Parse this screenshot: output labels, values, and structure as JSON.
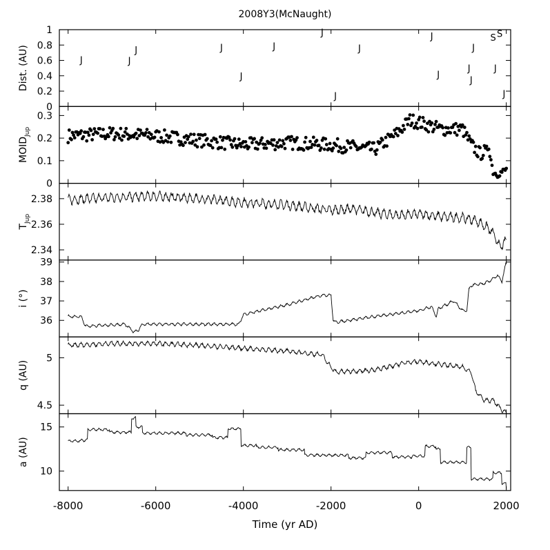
{
  "chart_data": {
    "type": "multi-panel",
    "title": "2008Y3(McNaught)",
    "xlabel": "Time (yr AD)",
    "xlim": [
      -8200,
      2100
    ],
    "xticks": [
      -8000,
      -6000,
      -4000,
      -2000,
      0,
      2000
    ],
    "xtick_labels": [
      "-8000",
      "-6000",
      "-4000",
      "-2000",
      "0",
      "2000"
    ],
    "panels": [
      {
        "key": "dist",
        "type": "annotation-scatter",
        "ylabel_main": "Dist. (AU)",
        "ylabel_sub": "",
        "ylim": [
          0,
          1
        ],
        "yticks": [
          0,
          0.2,
          0.4,
          0.6,
          0.8,
          1
        ],
        "ytick_labels": [
          "0",
          "0.2",
          "0.4",
          "0.6",
          "0.8",
          "1"
        ],
        "points": [
          {
            "x": -7700,
            "y": 0.61,
            "label": "J"
          },
          {
            "x": -6600,
            "y": 0.6,
            "label": "J"
          },
          {
            "x": -6450,
            "y": 0.74,
            "label": "J"
          },
          {
            "x": -4500,
            "y": 0.77,
            "label": "J"
          },
          {
            "x": -4050,
            "y": 0.4,
            "label": "J"
          },
          {
            "x": -3300,
            "y": 0.79,
            "label": "J"
          },
          {
            "x": -2200,
            "y": 0.97,
            "label": "J"
          },
          {
            "x": -1900,
            "y": 0.14,
            "label": "J"
          },
          {
            "x": -1350,
            "y": 0.76,
            "label": "J"
          },
          {
            "x": 300,
            "y": 0.92,
            "label": "J"
          },
          {
            "x": 450,
            "y": 0.42,
            "label": "J"
          },
          {
            "x": 1150,
            "y": 0.5,
            "label": "J"
          },
          {
            "x": 1200,
            "y": 0.35,
            "label": "J"
          },
          {
            "x": 1250,
            "y": 0.77,
            "label": "J"
          },
          {
            "x": 1700,
            "y": 0.9,
            "label": "S"
          },
          {
            "x": 1850,
            "y": 0.95,
            "label": "S"
          },
          {
            "x": 1750,
            "y": 0.5,
            "label": "J"
          },
          {
            "x": 1950,
            "y": 0.17,
            "label": "J"
          }
        ]
      },
      {
        "key": "moid",
        "type": "scatter",
        "ylabel_main": "MOID",
        "ylabel_sub": "Jup",
        "ylim": [
          0,
          0.34
        ],
        "yticks": [
          0,
          0.1,
          0.2,
          0.3
        ],
        "ytick_labels": [
          "0",
          "0.1",
          "0.2",
          "0.3"
        ],
        "trend": {
          "x": [
            -8000,
            -7000,
            -6000,
            -5000,
            -4000,
            -3000,
            -2000,
            -1500,
            -1000,
            -500,
            -200,
            0,
            500,
            1000,
            1200,
            1400,
            1500,
            1600,
            1700,
            1800,
            1900,
            2000
          ],
          "y": [
            0.21,
            0.22,
            0.21,
            0.19,
            0.17,
            0.18,
            0.17,
            0.16,
            0.15,
            0.22,
            0.28,
            0.27,
            0.24,
            0.24,
            0.17,
            0.13,
            0.14,
            0.16,
            0.05,
            0.04,
            0.05,
            0.06
          ]
        },
        "spread": 0.03
      },
      {
        "key": "tjup",
        "type": "line",
        "ylabel_main": "T",
        "ylabel_sub": "Jup",
        "ylim": [
          2.332,
          2.392
        ],
        "yticks": [
          2.34,
          2.36,
          2.38
        ],
        "ytick_labels": [
          "2.34",
          "2.36",
          "2.38"
        ],
        "trend": {
          "x": [
            -8000,
            -7000,
            -6000,
            -5000,
            -4000,
            -3000,
            -2000,
            -1500,
            -1000,
            -500,
            0,
            500,
            1000,
            1300,
            1500,
            1650,
            1750,
            1850,
            2000
          ],
          "y": [
            2.379,
            2.381,
            2.382,
            2.38,
            2.377,
            2.375,
            2.371,
            2.372,
            2.369,
            2.367,
            2.368,
            2.366,
            2.365,
            2.363,
            2.359,
            2.355,
            2.35,
            2.342,
            2.347
          ]
        },
        "osc_amp": 0.003
      },
      {
        "key": "incl",
        "type": "line",
        "ylabel_main": "i (°)",
        "ylabel_sub": "",
        "ylim": [
          35.15,
          39.1
        ],
        "yticks": [
          36,
          37,
          38,
          39
        ],
        "ytick_labels": [
          "36",
          "37",
          "38",
          "39"
        ],
        "trend": {
          "x": [
            -8000,
            -7700,
            -7600,
            -6700,
            -6500,
            -6400,
            -6300,
            -5000,
            -4100,
            -4000,
            -3000,
            -2200,
            -2000,
            -1950,
            -1900,
            -1000,
            0,
            300,
            400,
            450,
            800,
            1000,
            1100,
            1150,
            1200,
            1500,
            1600,
            1800,
            1900,
            2000
          ],
          "y": [
            36.2,
            36.2,
            35.7,
            35.8,
            35.4,
            35.5,
            35.8,
            35.8,
            35.8,
            36.3,
            36.8,
            37.3,
            37.3,
            36.0,
            35.9,
            36.2,
            36.5,
            36.7,
            36.2,
            36.6,
            37.0,
            36.5,
            36.5,
            37.6,
            37.8,
            37.9,
            38.0,
            38.3,
            38.0,
            39.0
          ]
        },
        "osc_amp": 0.06
      },
      {
        "key": "q",
        "type": "line",
        "ylabel_main": "q (AU)",
        "ylabel_sub": "",
        "ylim": [
          4.41,
          5.22
        ],
        "yticks": [
          4.5,
          5
        ],
        "ytick_labels": [
          "4.5",
          "5"
        ],
        "trend": {
          "x": [
            -8000,
            -7000,
            -6000,
            -5000,
            -4000,
            -3000,
            -2200,
            -2000,
            -1900,
            -1000,
            -300,
            0,
            500,
            1000,
            1200,
            1300,
            1400,
            1500,
            1700,
            1800,
            1900,
            2000
          ],
          "y": [
            5.13,
            5.15,
            5.15,
            5.13,
            5.1,
            5.07,
            5.03,
            4.9,
            4.85,
            4.87,
            4.95,
            4.96,
            4.93,
            4.9,
            4.85,
            4.65,
            4.6,
            4.55,
            4.55,
            4.5,
            4.45,
            4.42
          ]
        },
        "osc_amp": 0.02
      },
      {
        "key": "a",
        "type": "line",
        "ylabel_main": "a (AU)",
        "ylabel_sub": "",
        "ylim": [
          7.8,
          16.5
        ],
        "yticks": [
          10,
          15
        ],
        "ytick_labels": [
          "10",
          "15"
        ],
        "steps": {
          "x": [
            -8000,
            -7700,
            -7550,
            -7050,
            -6550,
            -6450,
            -6300,
            -5300,
            -4700,
            -4350,
            -4050,
            -3700,
            -3200,
            -2600,
            -1600,
            -1200,
            -600,
            -150,
            150,
            400,
            500,
            1100,
            1200,
            1700,
            1900,
            2000
          ],
          "y": [
            13.4,
            13.5,
            14.7,
            14.4,
            16.0,
            15.0,
            14.3,
            14.1,
            13.8,
            14.8,
            12.9,
            12.7,
            12.4,
            11.8,
            11.5,
            12.1,
            11.6,
            11.7,
            12.8,
            12.5,
            11.0,
            12.7,
            9.1,
            9.8,
            8.6,
            8.0
          ]
        },
        "osc_amp": 0.12
      }
    ]
  }
}
